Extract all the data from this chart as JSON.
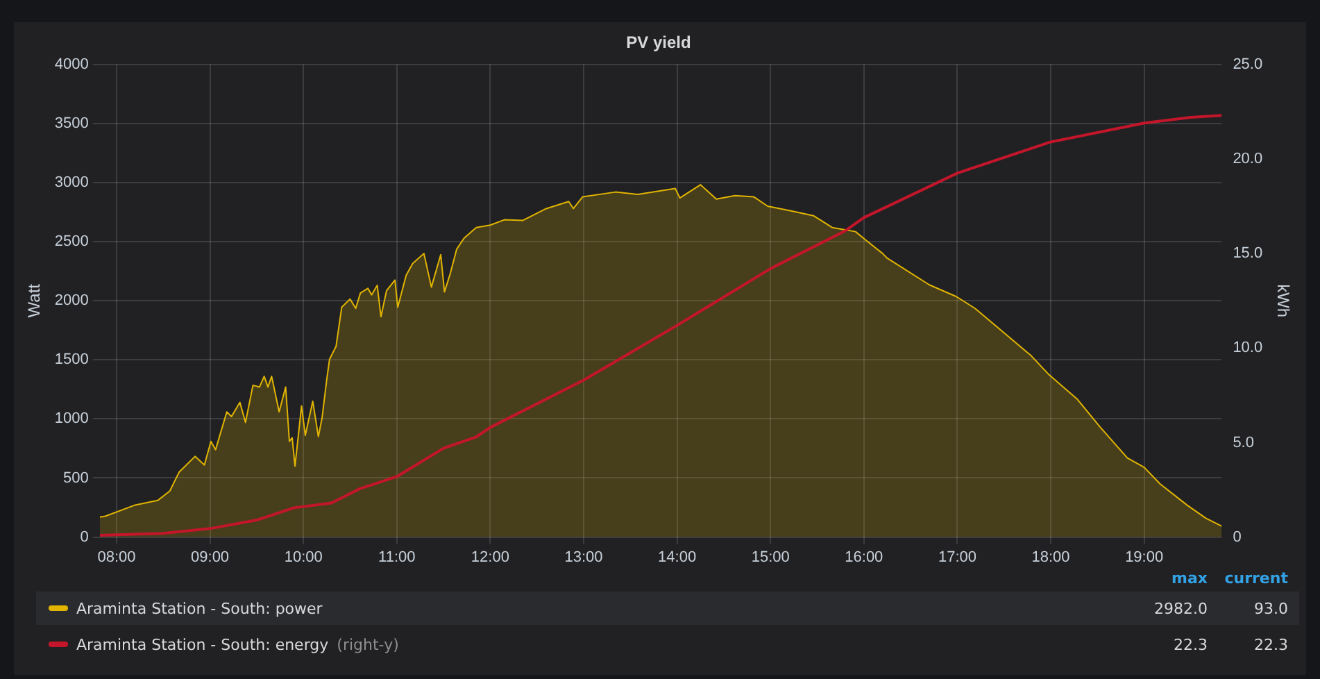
{
  "chart_data": {
    "type": "area",
    "title": "PV yield",
    "ylabel": "Watt",
    "y2label": "kWh",
    "xlim": [
      7.82,
      19.83
    ],
    "xticks": [
      {
        "value": 8,
        "label": "08:00"
      },
      {
        "value": 9,
        "label": "09:00"
      },
      {
        "value": 10,
        "label": "10:00"
      },
      {
        "value": 11,
        "label": "11:00"
      },
      {
        "value": 12,
        "label": "12:00"
      },
      {
        "value": 13,
        "label": "13:00"
      },
      {
        "value": 14,
        "label": "14:00"
      },
      {
        "value": 15,
        "label": "15:00"
      },
      {
        "value": 16,
        "label": "16:00"
      },
      {
        "value": 17,
        "label": "17:00"
      },
      {
        "value": 18,
        "label": "18:00"
      },
      {
        "value": 19,
        "label": "19:00"
      }
    ],
    "ylim": [
      0,
      4000
    ],
    "yticks": [
      0,
      500,
      1000,
      1500,
      2000,
      2500,
      3000,
      3500,
      4000
    ],
    "y2lim": [
      0,
      25
    ],
    "y2ticks": [
      0,
      {
        "value": 5,
        "label": "5.0"
      },
      {
        "value": 10,
        "label": "10.0"
      },
      {
        "value": 15,
        "label": "15.0"
      },
      {
        "value": 20,
        "label": "20.0"
      },
      {
        "value": 25,
        "label": "25.0"
      }
    ],
    "grid": true,
    "legend": "bottom",
    "marker": "none",
    "line_style": "solid",
    "series": [
      {
        "name": "Araminta Station - South: power",
        "type": "area",
        "color": "#e0b400",
        "x": [
          7.82,
          7.88,
          8.19,
          8.44,
          8.57,
          8.67,
          8.84,
          8.94,
          9.01,
          9.06,
          9.18,
          9.23,
          9.32,
          9.38,
          9.46,
          9.53,
          9.58,
          9.62,
          9.66,
          9.74,
          9.81,
          9.85,
          9.88,
          9.91,
          9.98,
          10.02,
          10.1,
          10.16,
          10.2,
          10.25,
          10.28,
          10.35,
          10.41,
          10.5,
          10.56,
          10.61,
          10.69,
          10.73,
          10.79,
          10.83,
          10.89,
          10.98,
          11.01,
          11.1,
          11.17,
          11.29,
          11.37,
          11.47,
          11.51,
          11.57,
          11.64,
          11.72,
          11.85,
          12.0,
          12.15,
          12.35,
          12.6,
          12.84,
          12.89,
          12.99,
          13.34,
          13.58,
          13.98,
          14.03,
          14.25,
          14.42,
          14.62,
          14.82,
          14.97,
          15.22,
          15.46,
          15.66,
          15.91,
          16.01,
          16.2,
          16.25,
          16.7,
          16.99,
          17.19,
          17.49,
          17.79,
          17.98,
          18.28,
          18.53,
          18.82,
          19.0,
          19.17,
          19.46,
          19.66,
          19.83
        ],
        "values": [
          170,
          177,
          269,
          310,
          390,
          550,
          683,
          610,
          810,
          740,
          1060,
          1020,
          1140,
          970,
          1285,
          1270,
          1360,
          1270,
          1360,
          1060,
          1270,
          810,
          840,
          600,
          1110,
          860,
          1150,
          850,
          1010,
          1335,
          1505,
          1615,
          1945,
          2015,
          1935,
          2065,
          2105,
          2050,
          2130,
          1865,
          2085,
          2175,
          1945,
          2215,
          2315,
          2400,
          2115,
          2390,
          2075,
          2225,
          2435,
          2530,
          2620,
          2640,
          2685,
          2680,
          2780,
          2840,
          2780,
          2880,
          2920,
          2900,
          2950,
          2870,
          2982,
          2860,
          2890,
          2880,
          2800,
          2760,
          2720,
          2620,
          2585,
          2520,
          2400,
          2360,
          2135,
          2035,
          1935,
          1735,
          1535,
          1375,
          1170,
          930,
          670,
          590,
          450,
          270,
          160,
          93
        ]
      },
      {
        "name": "Araminta Station - South: energy",
        "type": "line",
        "axis": "y2",
        "color": "#c4162a",
        "x": [
          7.82,
          8.5,
          9.0,
          9.5,
          9.9,
          10.3,
          10.6,
          11.0,
          11.5,
          11.85,
          12.0,
          13.0,
          14.0,
          15.0,
          15.8,
          16.0,
          17.0,
          18.0,
          19.0,
          19.5,
          19.83
        ],
        "values": [
          0.1,
          0.2,
          0.45,
          0.9,
          1.55,
          1.8,
          2.55,
          3.2,
          4.7,
          5.3,
          5.8,
          8.3,
          11.2,
          14.2,
          16.2,
          16.9,
          19.25,
          20.9,
          21.9,
          22.2,
          22.3
        ]
      }
    ],
    "annotations": [
      "max",
      "current",
      "2982.0",
      "93.0",
      "(right-y)",
      "22.3",
      "22.3"
    ]
  }
}
